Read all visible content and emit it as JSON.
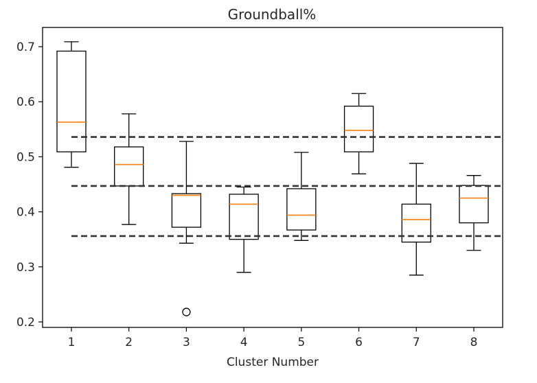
{
  "chart_data": {
    "type": "box",
    "title": "Groundball%",
    "xlabel": "Cluster Number",
    "ylabel": "",
    "categories": [
      "1",
      "2",
      "3",
      "4",
      "5",
      "6",
      "7",
      "8"
    ],
    "ylim": [
      0.19,
      0.735
    ],
    "yticks": [
      0.2,
      0.3,
      0.4,
      0.5,
      0.6,
      0.7
    ],
    "ytick_labels": [
      "0.2",
      "0.3",
      "0.4",
      "0.5",
      "0.6",
      "0.7"
    ],
    "boxes": [
      {
        "category": "1",
        "whisker_low": 0.481,
        "q1": 0.509,
        "median": 0.563,
        "q3": 0.692,
        "whisker_high": 0.709,
        "outliers": []
      },
      {
        "category": "2",
        "whisker_low": 0.377,
        "q1": 0.447,
        "median": 0.486,
        "q3": 0.518,
        "whisker_high": 0.578,
        "outliers": []
      },
      {
        "category": "3",
        "whisker_low": 0.343,
        "q1": 0.372,
        "median": 0.43,
        "q3": 0.433,
        "whisker_high": 0.528,
        "outliers": [
          0.218
        ]
      },
      {
        "category": "4",
        "whisker_low": 0.29,
        "q1": 0.35,
        "median": 0.414,
        "q3": 0.432,
        "whisker_high": 0.445,
        "outliers": []
      },
      {
        "category": "5",
        "whisker_low": 0.348,
        "q1": 0.367,
        "median": 0.394,
        "q3": 0.442,
        "whisker_high": 0.508,
        "outliers": []
      },
      {
        "category": "6",
        "whisker_low": 0.469,
        "q1": 0.509,
        "median": 0.548,
        "q3": 0.592,
        "whisker_high": 0.615,
        "outliers": []
      },
      {
        "category": "7",
        "whisker_low": 0.285,
        "q1": 0.345,
        "median": 0.386,
        "q3": 0.414,
        "whisker_high": 0.488,
        "outliers": []
      },
      {
        "category": "8",
        "whisker_low": 0.33,
        "q1": 0.38,
        "median": 0.425,
        "q3": 0.448,
        "whisker_high": 0.466,
        "outliers": []
      }
    ],
    "reference_lines": [
      0.536,
      0.447,
      0.356
    ],
    "reference_line_style": "dashed",
    "grid": false,
    "legend": "none",
    "colors": {
      "box": "#000000",
      "median": "#ff7f0e",
      "reference": "#333333",
      "text": "#262626"
    }
  }
}
